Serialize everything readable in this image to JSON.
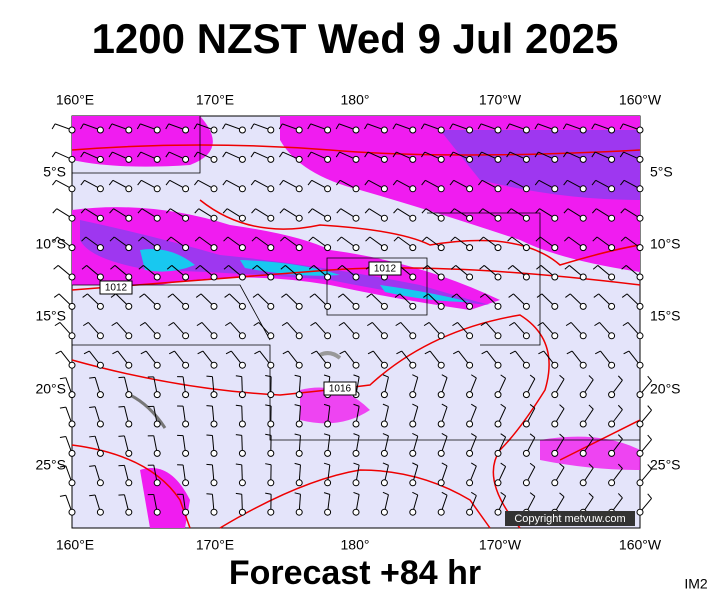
{
  "title": "1200 NZST Wed 9 Jul 2025",
  "footer": "Forecast +84 hr",
  "credit": "IM2",
  "copyright": "Copyright metvuw.com",
  "longitudes": [
    "160°E",
    "170°E",
    "180°",
    "170°W",
    "160°W"
  ],
  "latitudes": [
    "5°S",
    "10°S",
    "15°S",
    "20°S",
    "25°S"
  ],
  "contour_labels": [
    "1012",
    "1012",
    "1016"
  ]
}
